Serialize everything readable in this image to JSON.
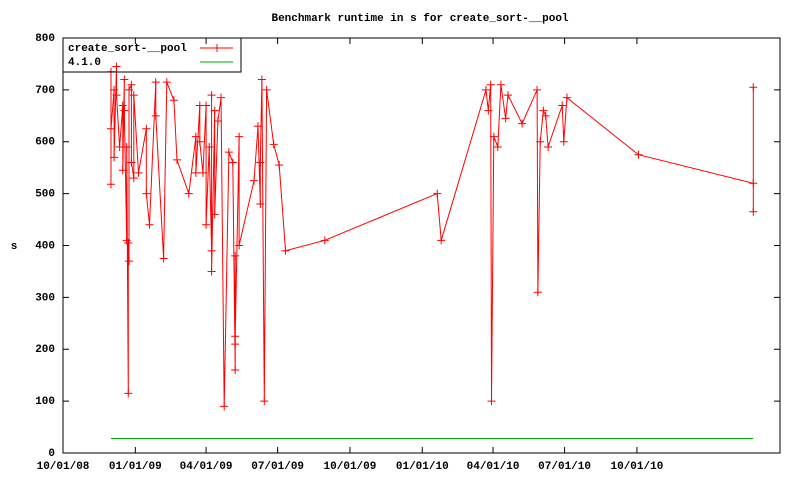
{
  "chart_data": {
    "type": "line",
    "title": "Benchmark runtime in s for create_sort-__pool",
    "y_label": "s",
    "x": [
      "12/01/08",
      "12/01/08",
      "12/01/08",
      "12/05/08",
      "12/05/08",
      "12/08/08",
      "12/08/08",
      "12/12/08",
      "12/16/08",
      "12/16/08",
      "12/18/08",
      "12/18/08",
      "12/21/08",
      "12/21/08",
      "12/23/08",
      "12/23/08",
      "12/24/08",
      "12/24/08",
      "12/27/08",
      "12/27/08",
      "12/30/08",
      "12/30/08",
      "01/05/09",
      "01/15/09",
      "01/15/09",
      "01/19/09",
      "01/27/09",
      "01/27/09",
      "02/06/09",
      "02/10/09",
      "02/19/09",
      "02/23/09",
      "03/10/09",
      "03/19/09",
      "03/19/09",
      "03/24/09",
      "03/24/09",
      "03/28/09",
      "04/01/09",
      "04/01/09",
      "04/05/09",
      "04/08/09",
      "04/08/09",
      "04/08/09",
      "04/12/09",
      "04/12/09",
      "04/16/09",
      "04/20/09",
      "04/24/09",
      "04/30/09",
      "05/05/09",
      "05/08/09",
      "05/08/09",
      "05/08/09",
      "05/08/09",
      "05/13/09",
      "05/13/09",
      "06/01/09",
      "06/06/09",
      "06/09/09",
      "06/09/09",
      "06/11/09",
      "06/14/09",
      "06/17/09",
      "06/26/09",
      "07/03/09",
      "07/11/09",
      "08/30/09",
      "01/20/10",
      "01/25/10",
      "03/23/10",
      "03/26/10",
      "03/29/10",
      "03/30/10",
      "04/02/10",
      "04/07/10",
      "04/11/10",
      "04/17/10",
      "04/20/10",
      "05/08/10",
      "05/27/10",
      "05/28/10",
      "05/31/10",
      "06/04/10",
      "06/07/10",
      "06/10/10",
      "06/28/10",
      "06/30/10",
      "07/04/10",
      "10/03/10",
      "02/26/11",
      "02/26/11",
      "02/26/11"
    ],
    "series": [
      {
        "name": "create_sort-__pool",
        "color": "#ff0000",
        "markers": true,
        "values": [
          735,
          518,
          625,
          700,
          570,
          745,
          690,
          590,
          670,
          545,
          720,
          660,
          410,
          590,
          115,
          405,
          370,
          700,
          710,
          560,
          530,
          690,
          540,
          625,
          500,
          440,
          715,
          650,
          375,
          715,
          680,
          565,
          500,
          610,
          540,
          670,
          600,
          540,
          670,
          440,
          590,
          390,
          690,
          350,
          660,
          460,
          640,
          685,
          90,
          580,
          560,
          160,
          380,
          210,
          225,
          610,
          400,
          525,
          630,
          480,
          560,
          720,
          100,
          700,
          595,
          555,
          390,
          410,
          500,
          410,
          700,
          660,
          710,
          100,
          610,
          590,
          710,
          645,
          690,
          635,
          700,
          310,
          600,
          660,
          650,
          590,
          670,
          600,
          685,
          575,
          520,
          465,
          705
        ]
      },
      {
        "name": "4.1.0",
        "color": "#00aa00",
        "markers": false,
        "x": [
          "12/01/08",
          "02/26/11"
        ],
        "values": [
          28,
          28
        ]
      }
    ],
    "xlim": [
      "10/01/08",
      "04/01/11"
    ],
    "xticks": [
      "10/01/08",
      "01/01/09",
      "04/01/09",
      "07/01/09",
      "10/01/09",
      "01/01/10",
      "04/01/10",
      "07/01/10",
      "10/01/10"
    ],
    "ylim": [
      0,
      800
    ],
    "yticks": [
      0,
      100,
      200,
      300,
      400,
      500,
      600,
      700,
      800
    ],
    "legend": "top-left"
  }
}
